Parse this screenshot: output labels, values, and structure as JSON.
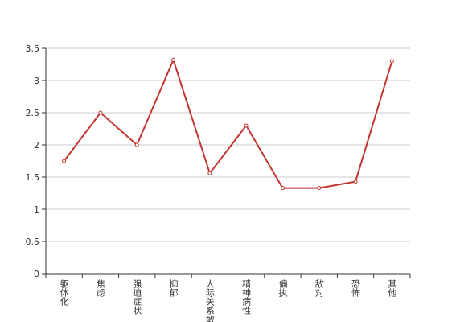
{
  "chart_data": {
    "type": "line",
    "categories": [
      "躯体化",
      "焦虑",
      "强迫症状",
      "抑郁",
      "人际关系敏感",
      "精神病性",
      "偏执",
      "敌对",
      "恐怖",
      "其他"
    ],
    "series": [
      {
        "color": "#c23531",
        "values": [
          1.75,
          2.5,
          2.0,
          3.32,
          1.56,
          2.3,
          1.33,
          1.33,
          1.43,
          3.3
        ]
      }
    ],
    "ylim": [
      0,
      3.5
    ],
    "yticks": [
      0,
      0.5,
      1,
      1.5,
      2,
      2.5,
      3,
      3.5
    ],
    "grid": true
  }
}
